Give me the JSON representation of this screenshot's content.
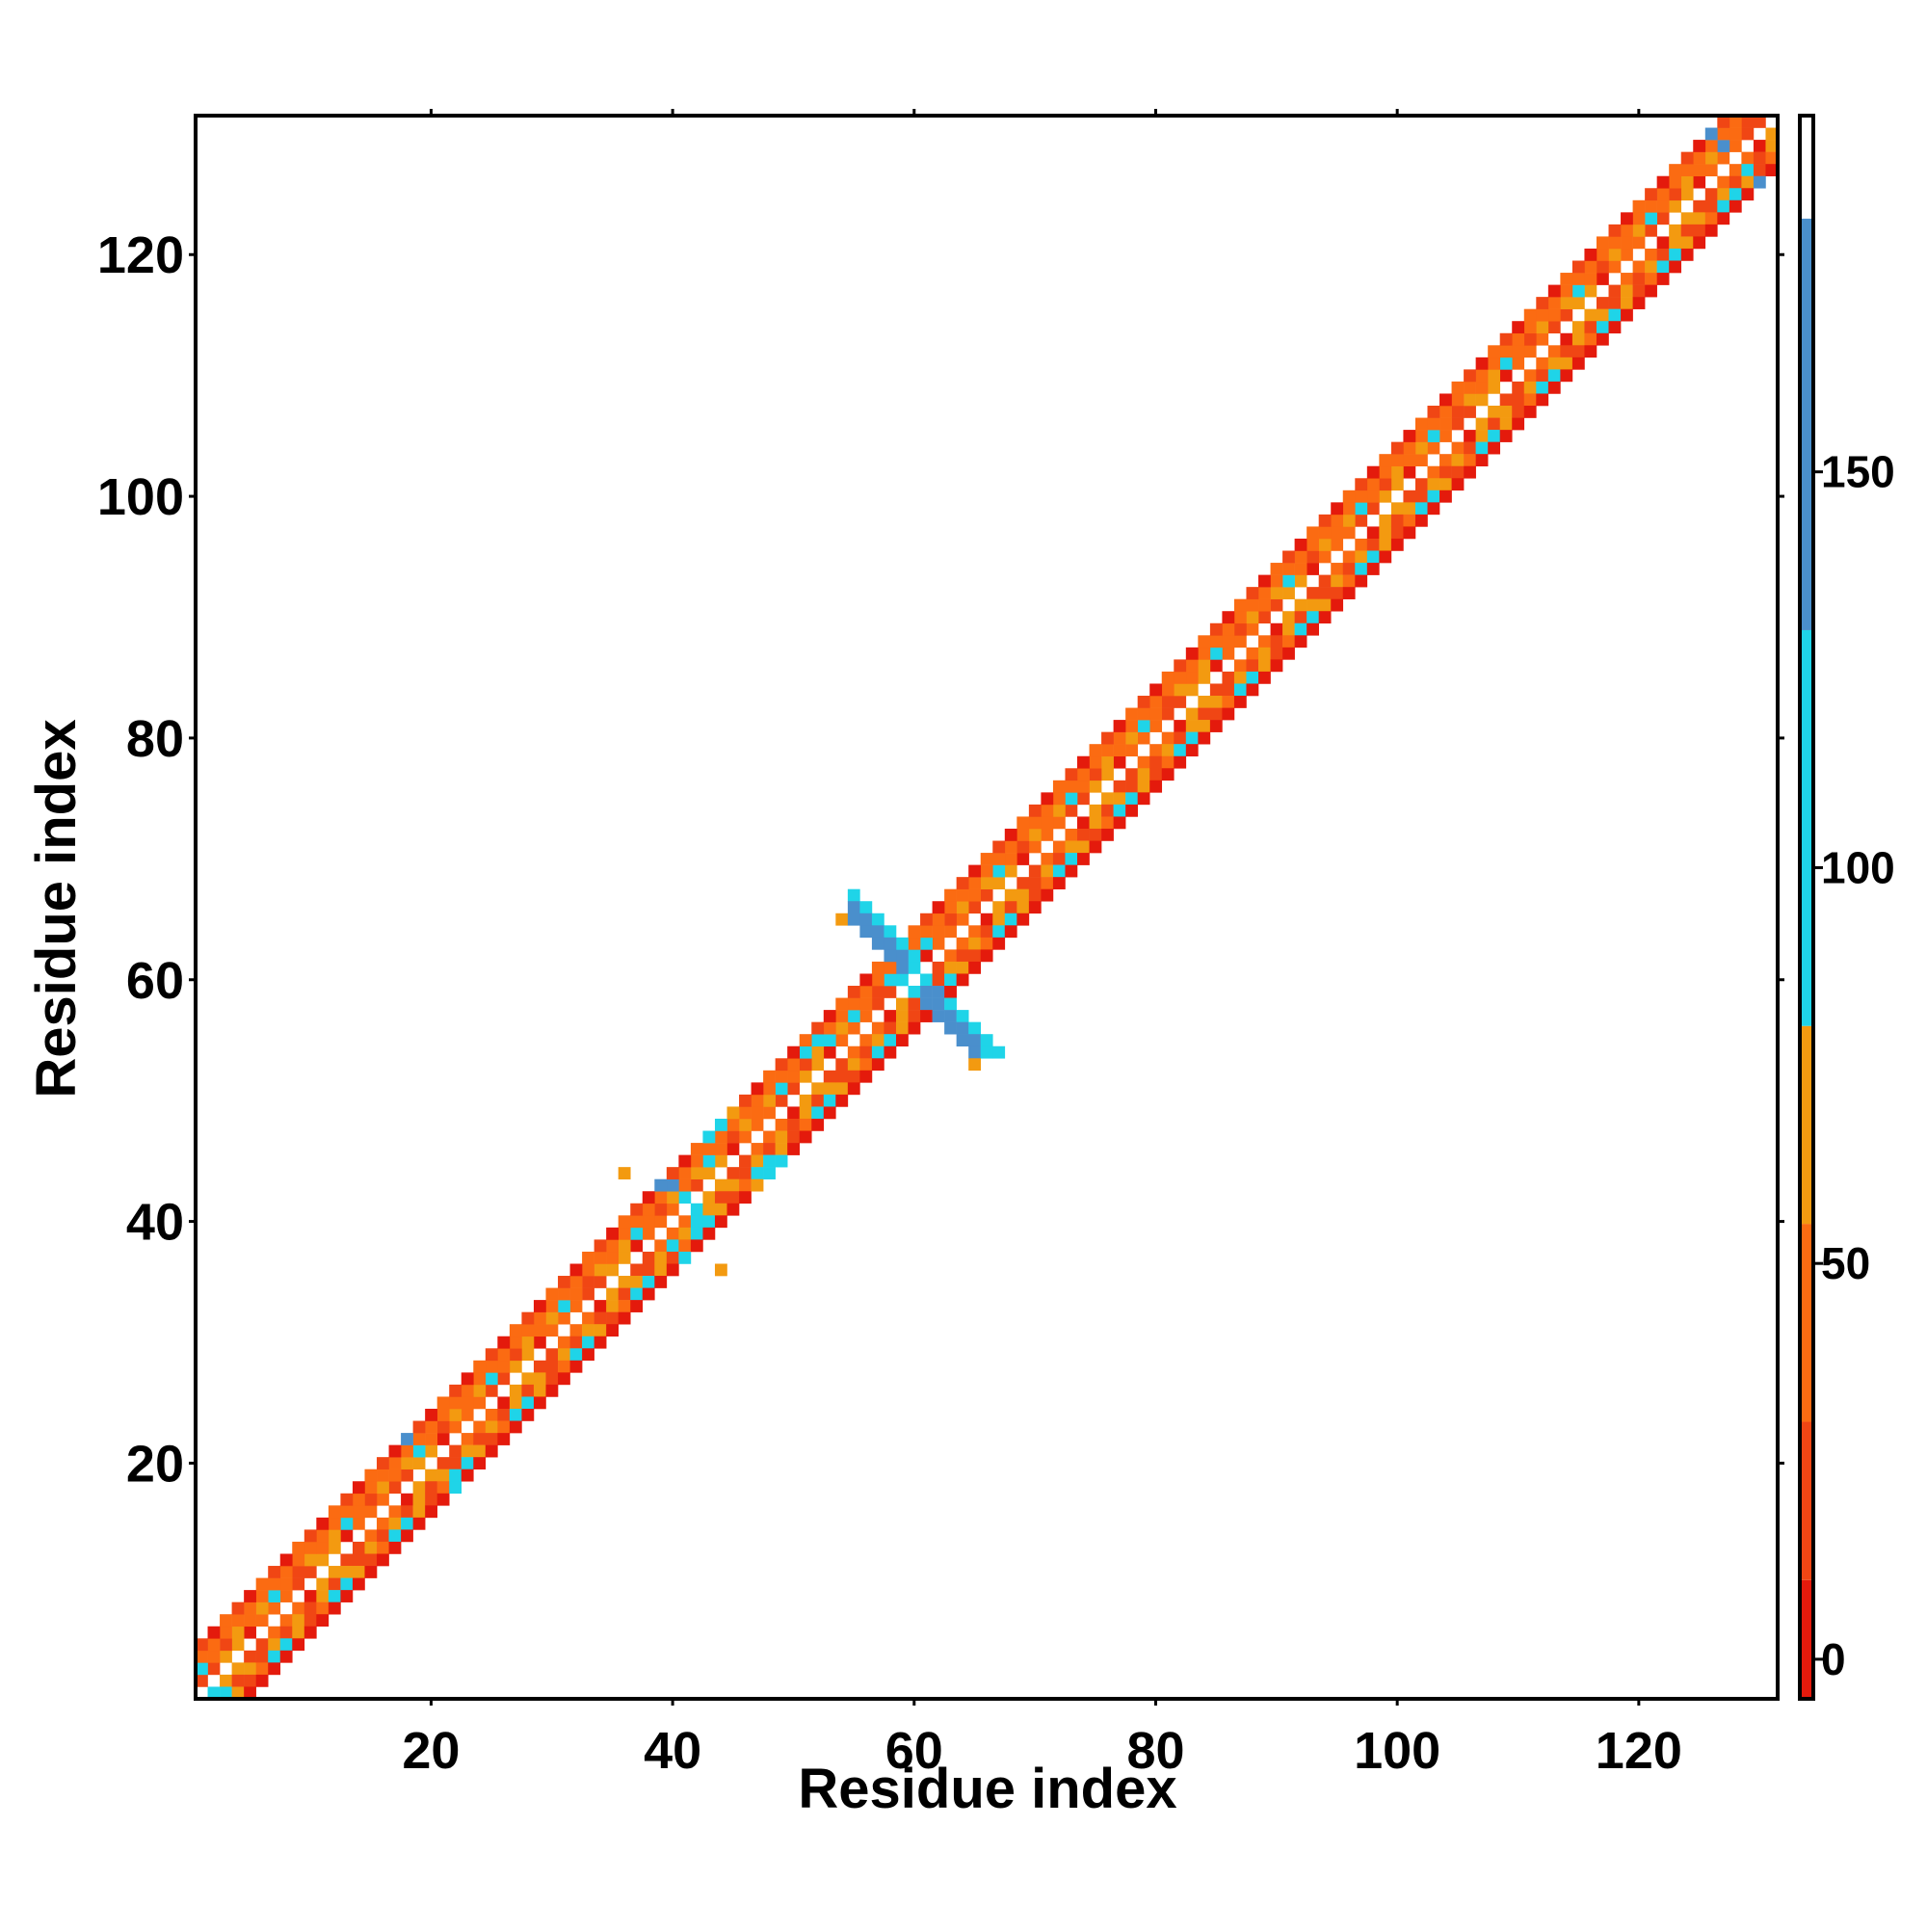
{
  "chart_data": {
    "type": "heatmap",
    "title": "",
    "xlabel": "Residue index",
    "ylabel": "Residue index",
    "xlim": [
      0.5,
      131.5
    ],
    "ylim": [
      0.5,
      131.5
    ],
    "n_residues": 131,
    "x_ticks": [
      20,
      40,
      60,
      80,
      100,
      120
    ],
    "y_ticks": [
      20,
      40,
      60,
      80,
      100,
      120
    ],
    "x_tick_labels": [
      "20",
      "40",
      "60",
      "80",
      "100",
      "120"
    ],
    "y_tick_labels": [
      "20",
      "40",
      "60",
      "80",
      "100",
      "120"
    ],
    "grid": false,
    "legend": "none",
    "colorbar": {
      "range": [
        -5,
        195
      ],
      "ticks": [
        0,
        50,
        100,
        150
      ],
      "tick_labels": [
        "0",
        "50",
        "100",
        "150"
      ],
      "segments": [
        {
          "from": -5,
          "to": 10,
          "color": "#e41a0c"
        },
        {
          "from": 10,
          "to": 30,
          "color": "#f04614"
        },
        {
          "from": 30,
          "to": 55,
          "color": "#fb6b12"
        },
        {
          "from": 55,
          "to": 80,
          "color": "#f39a10"
        },
        {
          "from": 80,
          "to": 130,
          "color": "#1fd4e8"
        },
        {
          "from": 130,
          "to": 182,
          "color": "#4a8fcc"
        },
        {
          "from": 182,
          "to": 195,
          "color": "#ffffff"
        }
      ]
    },
    "diagonal_bands": [
      {
        "offset": 1,
        "pattern": [
          "#f04614",
          "#fb6b12",
          "#f39a10",
          "#fb6b12",
          "#e41a0c",
          "#f04614",
          "#fb6b12",
          "#f39a10"
        ]
      },
      {
        "offset": 2,
        "pattern": [
          "#fb6b12",
          "#f39a10",
          "#f04614",
          "#fb6b12",
          "#1fd4e8",
          "#f39a10"
        ]
      },
      {
        "offset": 3,
        "pattern": [
          "#1fd4e8",
          "#f39a10",
          "#fb6b12",
          "#1fd4e8",
          "#f04614"
        ]
      },
      {
        "offset": 4,
        "pattern": [
          "#fb6b12",
          "#e41a0c",
          "#f04614"
        ]
      }
    ],
    "special_cells": [
      {
        "x": 55,
        "y": 67,
        "color": "#1fd4e8"
      },
      {
        "x": 55,
        "y": 66,
        "color": "#4a8fcc"
      },
      {
        "x": 56,
        "y": 66,
        "color": "#1fd4e8"
      },
      {
        "x": 54,
        "y": 65,
        "color": "#f39a10"
      },
      {
        "x": 55,
        "y": 65,
        "color": "#4a8fcc"
      },
      {
        "x": 56,
        "y": 65,
        "color": "#4a8fcc"
      },
      {
        "x": 57,
        "y": 65,
        "color": "#1fd4e8"
      },
      {
        "x": 56,
        "y": 64,
        "color": "#4a8fcc"
      },
      {
        "x": 57,
        "y": 64,
        "color": "#4a8fcc"
      },
      {
        "x": 58,
        "y": 64,
        "color": "#1fd4e8"
      },
      {
        "x": 57,
        "y": 63,
        "color": "#4a8fcc"
      },
      {
        "x": 58,
        "y": 63,
        "color": "#4a8fcc"
      },
      {
        "x": 59,
        "y": 63,
        "color": "#1fd4e8"
      },
      {
        "x": 58,
        "y": 62,
        "color": "#4a8fcc"
      },
      {
        "x": 59,
        "y": 62,
        "color": "#4a8fcc"
      },
      {
        "x": 60,
        "y": 62,
        "color": "#1fd4e8"
      },
      {
        "x": 59,
        "y": 61,
        "color": "#4a8fcc"
      },
      {
        "x": 60,
        "y": 61,
        "color": "#1fd4e8"
      },
      {
        "x": 58,
        "y": 60,
        "color": "#1fd4e8"
      },
      {
        "x": 59,
        "y": 60,
        "color": "#1fd4e8"
      },
      {
        "x": 61,
        "y": 60,
        "color": "#1fd4e8"
      },
      {
        "x": 60,
        "y": 59,
        "color": "#1fd4e8"
      },
      {
        "x": 61,
        "y": 59,
        "color": "#4a8fcc"
      },
      {
        "x": 62,
        "y": 59,
        "color": "#4a8fcc"
      },
      {
        "x": 61,
        "y": 58,
        "color": "#4a8fcc"
      },
      {
        "x": 62,
        "y": 58,
        "color": "#4a8fcc"
      },
      {
        "x": 63,
        "y": 58,
        "color": "#1fd4e8"
      },
      {
        "x": 62,
        "y": 57,
        "color": "#4a8fcc"
      },
      {
        "x": 63,
        "y": 57,
        "color": "#4a8fcc"
      },
      {
        "x": 64,
        "y": 57,
        "color": "#1fd4e8"
      },
      {
        "x": 63,
        "y": 56,
        "color": "#4a8fcc"
      },
      {
        "x": 64,
        "y": 56,
        "color": "#4a8fcc"
      },
      {
        "x": 65,
        "y": 56,
        "color": "#1fd4e8"
      },
      {
        "x": 64,
        "y": 55,
        "color": "#4a8fcc"
      },
      {
        "x": 65,
        "y": 55,
        "color": "#4a8fcc"
      },
      {
        "x": 66,
        "y": 55,
        "color": "#1fd4e8"
      },
      {
        "x": 65,
        "y": 54,
        "color": "#4a8fcc"
      },
      {
        "x": 66,
        "y": 54,
        "color": "#1fd4e8"
      },
      {
        "x": 67,
        "y": 54,
        "color": "#1fd4e8"
      },
      {
        "x": 65,
        "y": 53,
        "color": "#f39a10"
      },
      {
        "x": 36,
        "y": 44,
        "color": "#f39a10"
      },
      {
        "x": 44,
        "y": 36,
        "color": "#f39a10"
      },
      {
        "x": 39,
        "y": 43,
        "color": "#4a8fcc"
      },
      {
        "x": 40,
        "y": 43,
        "color": "#4a8fcc"
      },
      {
        "x": 41,
        "y": 42,
        "color": "#1fd4e8"
      },
      {
        "x": 42,
        "y": 41,
        "color": "#1fd4e8"
      },
      {
        "x": 43,
        "y": 40,
        "color": "#1fd4e8"
      },
      {
        "x": 42,
        "y": 40,
        "color": "#1fd4e8"
      },
      {
        "x": 40,
        "y": 38,
        "color": "#1fd4e8"
      },
      {
        "x": 41,
        "y": 37,
        "color": "#1fd4e8"
      },
      {
        "x": 43,
        "y": 47,
        "color": "#1fd4e8"
      },
      {
        "x": 44,
        "y": 48,
        "color": "#1fd4e8"
      },
      {
        "x": 45,
        "y": 49,
        "color": "#f39a10"
      },
      {
        "x": 48,
        "y": 44,
        "color": "#1fd4e8"
      },
      {
        "x": 49,
        "y": 45,
        "color": "#1fd4e8"
      },
      {
        "x": 47,
        "y": 43,
        "color": "#f39a10"
      },
      {
        "x": 52,
        "y": 55,
        "color": "#1fd4e8"
      },
      {
        "x": 53,
        "y": 55,
        "color": "#1fd4e8"
      },
      {
        "x": 51,
        "y": 54,
        "color": "#1fd4e8"
      },
      {
        "x": 126,
        "y": 130,
        "color": "#4a8fcc"
      },
      {
        "x": 127,
        "y": 129,
        "color": "#4a8fcc"
      },
      {
        "x": 130,
        "y": 126,
        "color": "#4a8fcc"
      },
      {
        "x": 129,
        "y": 127,
        "color": "#1fd4e8"
      },
      {
        "x": 18,
        "y": 22,
        "color": "#4a8fcc"
      },
      {
        "x": 22,
        "y": 18,
        "color": "#1fd4e8"
      },
      {
        "x": 1,
        "y": 3,
        "color": "#1fd4e8"
      },
      {
        "x": 2,
        "y": 1,
        "color": "#1fd4e8"
      },
      {
        "x": 3,
        "y": 1,
        "color": "#1fd4e8"
      }
    ]
  }
}
